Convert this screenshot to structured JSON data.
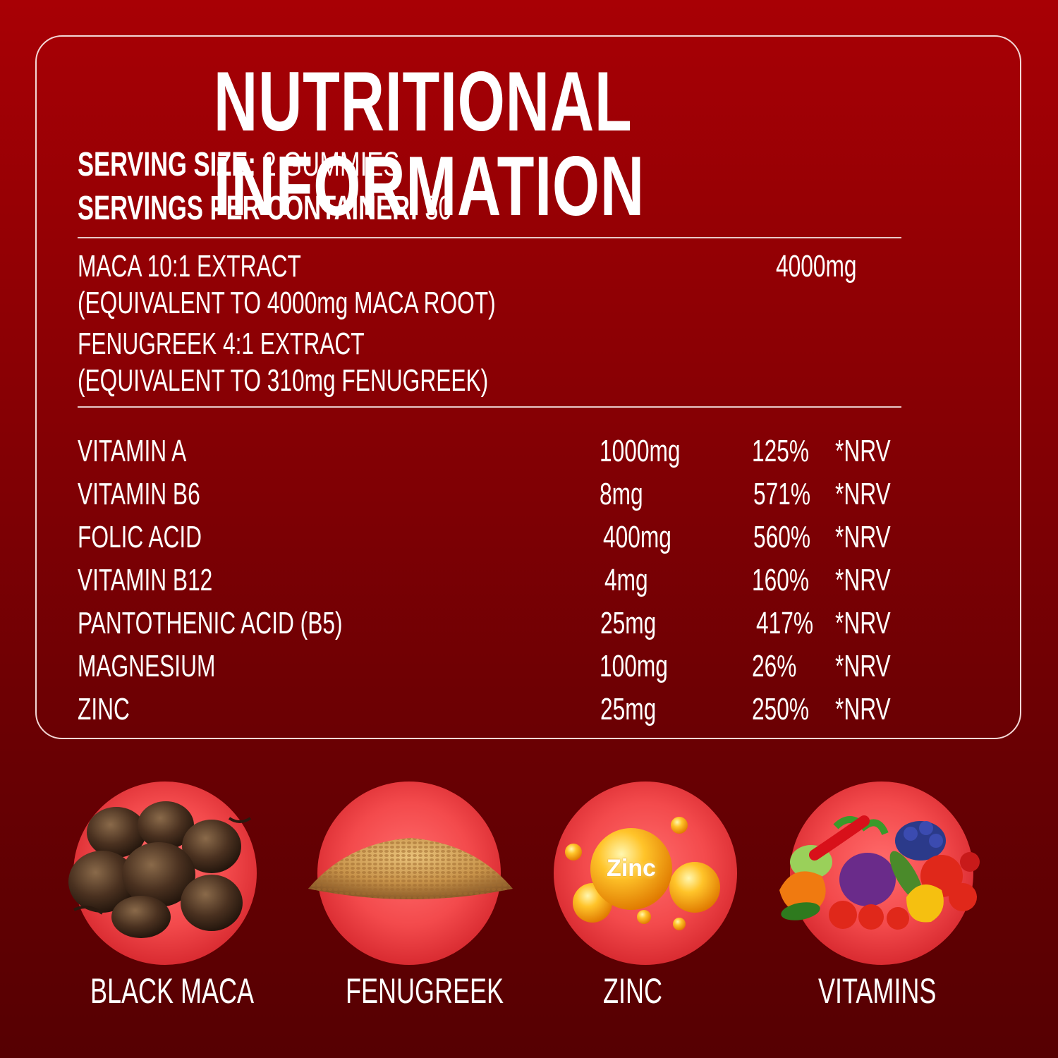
{
  "title": "NUTRITIONAL INFORMATION",
  "serving": {
    "size_label": "SERVING SIZE:",
    "size_value": "2 GUMMIES",
    "per_container_label": "SERVINGS PER CONTAINER:",
    "per_container_value": "30"
  },
  "extracts": [
    {
      "line1": "MACA 10:1 EXTRACT",
      "line2": "(EQUIVALENT TO 4000mg MACA ROOT)",
      "amount": "4000mg"
    },
    {
      "line1": "FENUGREEK 4:1 EXTRACT",
      "line2": "(EQUIVALENT TO 310mg FENUGREEK)",
      "amount": ""
    }
  ],
  "nutrients": [
    {
      "name": "VITAMIN A",
      "amount": "1000mg",
      "percent": "125%",
      "unit": "*NRV"
    },
    {
      "name": "VITAMIN B6",
      "amount": "8mg",
      "percent": "571%",
      "unit": "*NRV"
    },
    {
      "name": "FOLIC ACID",
      "amount": "400mg",
      "percent": "560%",
      "unit": "*NRV"
    },
    {
      "name": "VITAMIN B12",
      "amount": "4mg",
      "percent": "160%",
      "unit": "*NRV"
    },
    {
      "name": "PANTOTHENIC ACID (B5)",
      "amount": "25mg",
      "percent": "417%",
      "unit": "*NRV"
    },
    {
      "name": "MAGNESIUM",
      "amount": "100mg",
      "percent": "26%",
      "unit": "*NRV"
    },
    {
      "name": "ZINC",
      "amount": "25mg",
      "percent": "250%",
      "unit": "*NRV"
    }
  ],
  "ingredients": [
    {
      "label": "BLACK MACA",
      "icon": "maca-root-icon"
    },
    {
      "label": "FENUGREEK",
      "icon": "fenugreek-seeds-icon"
    },
    {
      "label": "ZINC",
      "icon": "zinc-spheres-icon",
      "badge_text": "Zinc"
    },
    {
      "label": "VITAMINS",
      "icon": "vegetables-icon"
    }
  ],
  "colors": {
    "background_top": "#a80005",
    "background_bottom": "#560002",
    "circle": "#f34a4c",
    "text": "#ffffff"
  }
}
